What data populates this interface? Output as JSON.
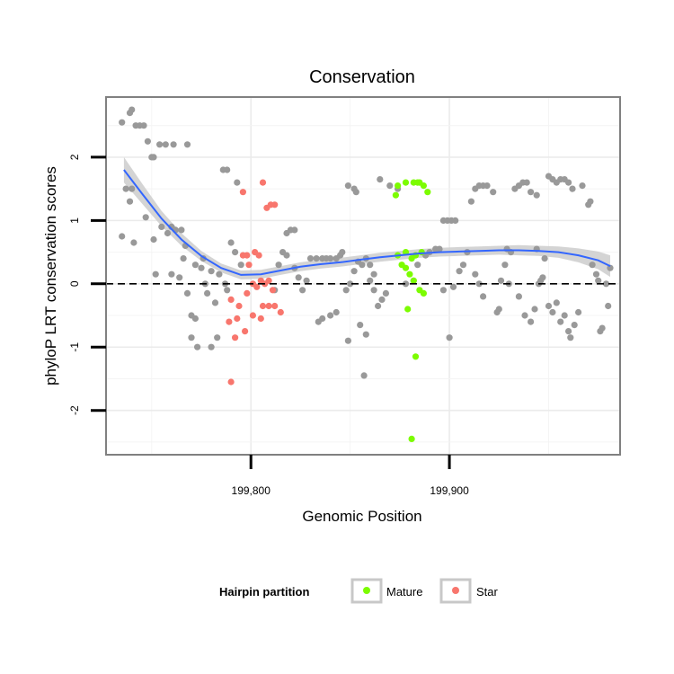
{
  "chart_data": {
    "type": "scatter",
    "title": "Conservation",
    "xlabel": "Genomic Position",
    "ylabel": "phyloP LRT conservation scores",
    "xlim": [
      199727,
      199986
    ],
    "ylim": [
      -2.7,
      2.95
    ],
    "x_ticks": [
      199800,
      199900
    ],
    "x_tick_labels": [
      "199,800",
      "199,900"
    ],
    "y_ticks": [
      -2,
      -1,
      0,
      1,
      2
    ],
    "y_tick_labels": [
      "-2",
      "-1",
      "0",
      "1",
      "2"
    ],
    "reference_line": {
      "y": 0,
      "style": "dashed"
    },
    "grid": true,
    "legend": {
      "title": "Hairpin partition",
      "placement": "bottom",
      "entries": [
        {
          "label": "Mature",
          "color": "#7CFC00"
        },
        {
          "label": "Star",
          "color": "#F8766D"
        }
      ]
    },
    "colors": {
      "other": "#999999",
      "Mature": "#7CFC00",
      "Star": "#F8766D",
      "smooth_line": "#3366FF",
      "ribbon": "#CCCCCC"
    },
    "series": [
      {
        "group": "other",
        "points": [
          [
            199735,
            2.55
          ],
          [
            199739,
            2.7
          ],
          [
            199740,
            2.75
          ],
          [
            199742,
            2.5
          ],
          [
            199744,
            2.5
          ],
          [
            199746,
            2.5
          ],
          [
            199737,
            1.5
          ],
          [
            199740,
            1.5
          ],
          [
            199739,
            1.3
          ],
          [
            199741,
            0.65
          ],
          [
            199735,
            0.75
          ],
          [
            199748,
            2.25
          ],
          [
            199750,
            2.0
          ],
          [
            199751,
            2.0
          ],
          [
            199754,
            2.2
          ],
          [
            199757,
            2.2
          ],
          [
            199761,
            2.2
          ],
          [
            199768,
            2.2
          ],
          [
            199747,
            1.05
          ],
          [
            199751,
            0.7
          ],
          [
            199752,
            0.15
          ],
          [
            199755,
            0.9
          ],
          [
            199758,
            0.8
          ],
          [
            199760,
            0.9
          ],
          [
            199762,
            0.85
          ],
          [
            199765,
            0.85
          ],
          [
            199767,
            0.6
          ],
          [
            199760,
            0.15
          ],
          [
            199764,
            0.1
          ],
          [
            199766,
            0.4
          ],
          [
            199768,
            -0.15
          ],
          [
            199770,
            -0.5
          ],
          [
            199772,
            -0.55
          ],
          [
            199770,
            -0.85
          ],
          [
            199773,
            -1.0
          ],
          [
            199780,
            -1.0
          ],
          [
            199772,
            0.3
          ],
          [
            199775,
            0.25
          ],
          [
            199777,
            0.0
          ],
          [
            199778,
            -0.15
          ],
          [
            199782,
            -0.3
          ],
          [
            199783,
            -0.85
          ],
          [
            199776,
            0.4
          ],
          [
            199780,
            0.2
          ],
          [
            199784,
            0.15
          ],
          [
            199786,
            1.8
          ],
          [
            199788,
            1.8
          ],
          [
            199793,
            1.6
          ],
          [
            199790,
            0.65
          ],
          [
            199792,
            0.5
          ],
          [
            199795,
            0.3
          ],
          [
            199787,
            0.0
          ],
          [
            199788,
            -0.1
          ],
          [
            199812,
            -0.1
          ],
          [
            199818,
            0.8
          ],
          [
            199820,
            0.85
          ],
          [
            199822,
            0.85
          ],
          [
            199816,
            0.5
          ],
          [
            199818,
            0.45
          ],
          [
            199814,
            0.3
          ],
          [
            199822,
            0.25
          ],
          [
            199824,
            0.1
          ],
          [
            199826,
            -0.1
          ],
          [
            199828,
            0.05
          ],
          [
            199830,
            0.4
          ],
          [
            199833,
            0.4
          ],
          [
            199836,
            0.4
          ],
          [
            199838,
            0.4
          ],
          [
            199840,
            0.4
          ],
          [
            199843,
            0.4
          ],
          [
            199845,
            0.45
          ],
          [
            199846,
            0.5
          ],
          [
            199834,
            -0.6
          ],
          [
            199836,
            -0.55
          ],
          [
            199840,
            -0.5
          ],
          [
            199843,
            -0.45
          ],
          [
            199848,
            -0.1
          ],
          [
            199850,
            0.0
          ],
          [
            199849,
            -0.9
          ],
          [
            199852,
            0.2
          ],
          [
            199854,
            0.35
          ],
          [
            199856,
            0.3
          ],
          [
            199858,
            0.4
          ],
          [
            199860,
            0.3
          ],
          [
            199862,
            0.15
          ],
          [
            199858,
            -0.8
          ],
          [
            199855,
            -0.65
          ],
          [
            199857,
            -1.45
          ],
          [
            199849,
            1.55
          ],
          [
            199852,
            1.5
          ],
          [
            199853,
            1.45
          ],
          [
            199865,
            1.65
          ],
          [
            199860,
            0.05
          ],
          [
            199862,
            -0.1
          ],
          [
            199864,
            -0.35
          ],
          [
            199866,
            -0.25
          ],
          [
            199868,
            -0.15
          ],
          [
            199870,
            1.55
          ],
          [
            199874,
            1.5
          ],
          [
            199878,
            0.0
          ],
          [
            199882,
            0.05
          ],
          [
            199884,
            0.3
          ],
          [
            199888,
            0.45
          ],
          [
            199890,
            0.5
          ],
          [
            199893,
            0.55
          ],
          [
            199895,
            0.55
          ],
          [
            199897,
            1.0
          ],
          [
            199899,
            1.0
          ],
          [
            199901,
            1.0
          ],
          [
            199903,
            1.0
          ],
          [
            199897,
            -0.1
          ],
          [
            199900,
            -0.85
          ],
          [
            199902,
            -0.05
          ],
          [
            199905,
            0.2
          ],
          [
            199907,
            0.3
          ],
          [
            199909,
            0.5
          ],
          [
            199911,
            1.3
          ],
          [
            199913,
            0.15
          ],
          [
            199915,
            0.0
          ],
          [
            199917,
            -0.2
          ],
          [
            199913,
            1.5
          ],
          [
            199915,
            1.55
          ],
          [
            199917,
            1.55
          ],
          [
            199919,
            1.55
          ],
          [
            199922,
            1.45
          ],
          [
            199924,
            -0.45
          ],
          [
            199926,
            0.05
          ],
          [
            199928,
            0.3
          ],
          [
            199929,
            0.55
          ],
          [
            199931,
            0.5
          ],
          [
            199933,
            1.5
          ],
          [
            199935,
            1.55
          ],
          [
            199937,
            1.6
          ],
          [
            199939,
            1.6
          ],
          [
            199941,
            1.45
          ],
          [
            199944,
            1.4
          ],
          [
            199938,
            -0.5
          ],
          [
            199941,
            -0.6
          ],
          [
            199943,
            -0.4
          ],
          [
            199945,
            0.0
          ],
          [
            199947,
            0.1
          ],
          [
            199948,
            0.4
          ],
          [
            199950,
            1.7
          ],
          [
            199952,
            1.65
          ],
          [
            199954,
            1.6
          ],
          [
            199956,
            1.65
          ],
          [
            199958,
            1.65
          ],
          [
            199960,
            1.6
          ],
          [
            199962,
            1.5
          ],
          [
            199950,
            -0.35
          ],
          [
            199952,
            -0.45
          ],
          [
            199954,
            -0.3
          ],
          [
            199956,
            -0.6
          ],
          [
            199958,
            -0.5
          ],
          [
            199960,
            -0.75
          ],
          [
            199961,
            -0.85
          ],
          [
            199963,
            -0.65
          ],
          [
            199965,
            -0.45
          ],
          [
            199967,
            1.55
          ],
          [
            199970,
            1.25
          ],
          [
            199971,
            1.3
          ],
          [
            199972,
            0.3
          ],
          [
            199974,
            0.15
          ],
          [
            199975,
            0.05
          ],
          [
            199976,
            -0.75
          ],
          [
            199977,
            -0.7
          ],
          [
            199979,
            0.0
          ],
          [
            199980,
            -0.35
          ],
          [
            199981,
            0.25
          ],
          [
            199944,
            0.55
          ],
          [
            199946,
            0.05
          ],
          [
            199935,
            -0.2
          ],
          [
            199930,
            0.0
          ],
          [
            199925,
            -0.4
          ]
        ]
      },
      {
        "group": "Mature",
        "points": [
          [
            199873,
            1.4
          ],
          [
            199874,
            1.55
          ],
          [
            199878,
            1.6
          ],
          [
            199882,
            1.6
          ],
          [
            199884,
            1.6
          ],
          [
            199885,
            1.6
          ],
          [
            199887,
            1.55
          ],
          [
            199889,
            1.45
          ],
          [
            199878,
            0.5
          ],
          [
            199881,
            0.4
          ],
          [
            199883,
            0.45
          ],
          [
            199886,
            0.5
          ],
          [
            199874,
            0.45
          ],
          [
            199876,
            0.3
          ],
          [
            199878,
            0.25
          ],
          [
            199880,
            0.15
          ],
          [
            199882,
            0.05
          ],
          [
            199885,
            -0.1
          ],
          [
            199887,
            -0.15
          ],
          [
            199879,
            -0.4
          ],
          [
            199883,
            -1.15
          ],
          [
            199881,
            -2.45
          ]
        ]
      },
      {
        "group": "Star",
        "points": [
          [
            199796,
            1.45
          ],
          [
            199806,
            1.6
          ],
          [
            199808,
            1.2
          ],
          [
            199810,
            1.25
          ],
          [
            199812,
            1.25
          ],
          [
            199796,
            0.45
          ],
          [
            199798,
            0.45
          ],
          [
            199802,
            0.5
          ],
          [
            199804,
            0.45
          ],
          [
            199799,
            0.3
          ],
          [
            199801,
            0.0
          ],
          [
            199803,
            -0.05
          ],
          [
            199805,
            0.05
          ],
          [
            199807,
            0.0
          ],
          [
            199809,
            0.05
          ],
          [
            199811,
            -0.1
          ],
          [
            199790,
            -0.25
          ],
          [
            199794,
            -0.35
          ],
          [
            199798,
            -0.15
          ],
          [
            199801,
            -0.5
          ],
          [
            199806,
            -0.35
          ],
          [
            199809,
            -0.35
          ],
          [
            199812,
            -0.35
          ],
          [
            199815,
            -0.45
          ],
          [
            199789,
            -0.6
          ],
          [
            199793,
            -0.55
          ],
          [
            199797,
            -0.75
          ],
          [
            199792,
            -0.85
          ],
          [
            199805,
            -0.55
          ],
          [
            199790,
            -1.55
          ]
        ]
      }
    ],
    "smooth": {
      "method": "loess",
      "points": [
        [
          199736,
          1.8
        ],
        [
          199745,
          1.43
        ],
        [
          199755,
          1.03
        ],
        [
          199765,
          0.7
        ],
        [
          199775,
          0.44
        ],
        [
          199785,
          0.25
        ],
        [
          199795,
          0.14
        ],
        [
          199805,
          0.15
        ],
        [
          199815,
          0.21
        ],
        [
          199825,
          0.27
        ],
        [
          199835,
          0.31
        ],
        [
          199845,
          0.34
        ],
        [
          199855,
          0.38
        ],
        [
          199865,
          0.42
        ],
        [
          199875,
          0.45
        ],
        [
          199885,
          0.48
        ],
        [
          199895,
          0.5
        ],
        [
          199905,
          0.51
        ],
        [
          199915,
          0.52
        ],
        [
          199925,
          0.53
        ],
        [
          199935,
          0.53
        ],
        [
          199945,
          0.52
        ],
        [
          199955,
          0.5
        ],
        [
          199965,
          0.45
        ],
        [
          199975,
          0.37
        ],
        [
          199981,
          0.28
        ]
      ],
      "band_halfwidth": [
        0.2,
        0.16,
        0.12,
        0.1,
        0.08,
        0.07,
        0.07,
        0.07,
        0.07,
        0.07,
        0.07,
        0.07,
        0.07,
        0.07,
        0.07,
        0.07,
        0.07,
        0.07,
        0.07,
        0.07,
        0.08,
        0.08,
        0.09,
        0.11,
        0.14,
        0.17
      ]
    }
  }
}
